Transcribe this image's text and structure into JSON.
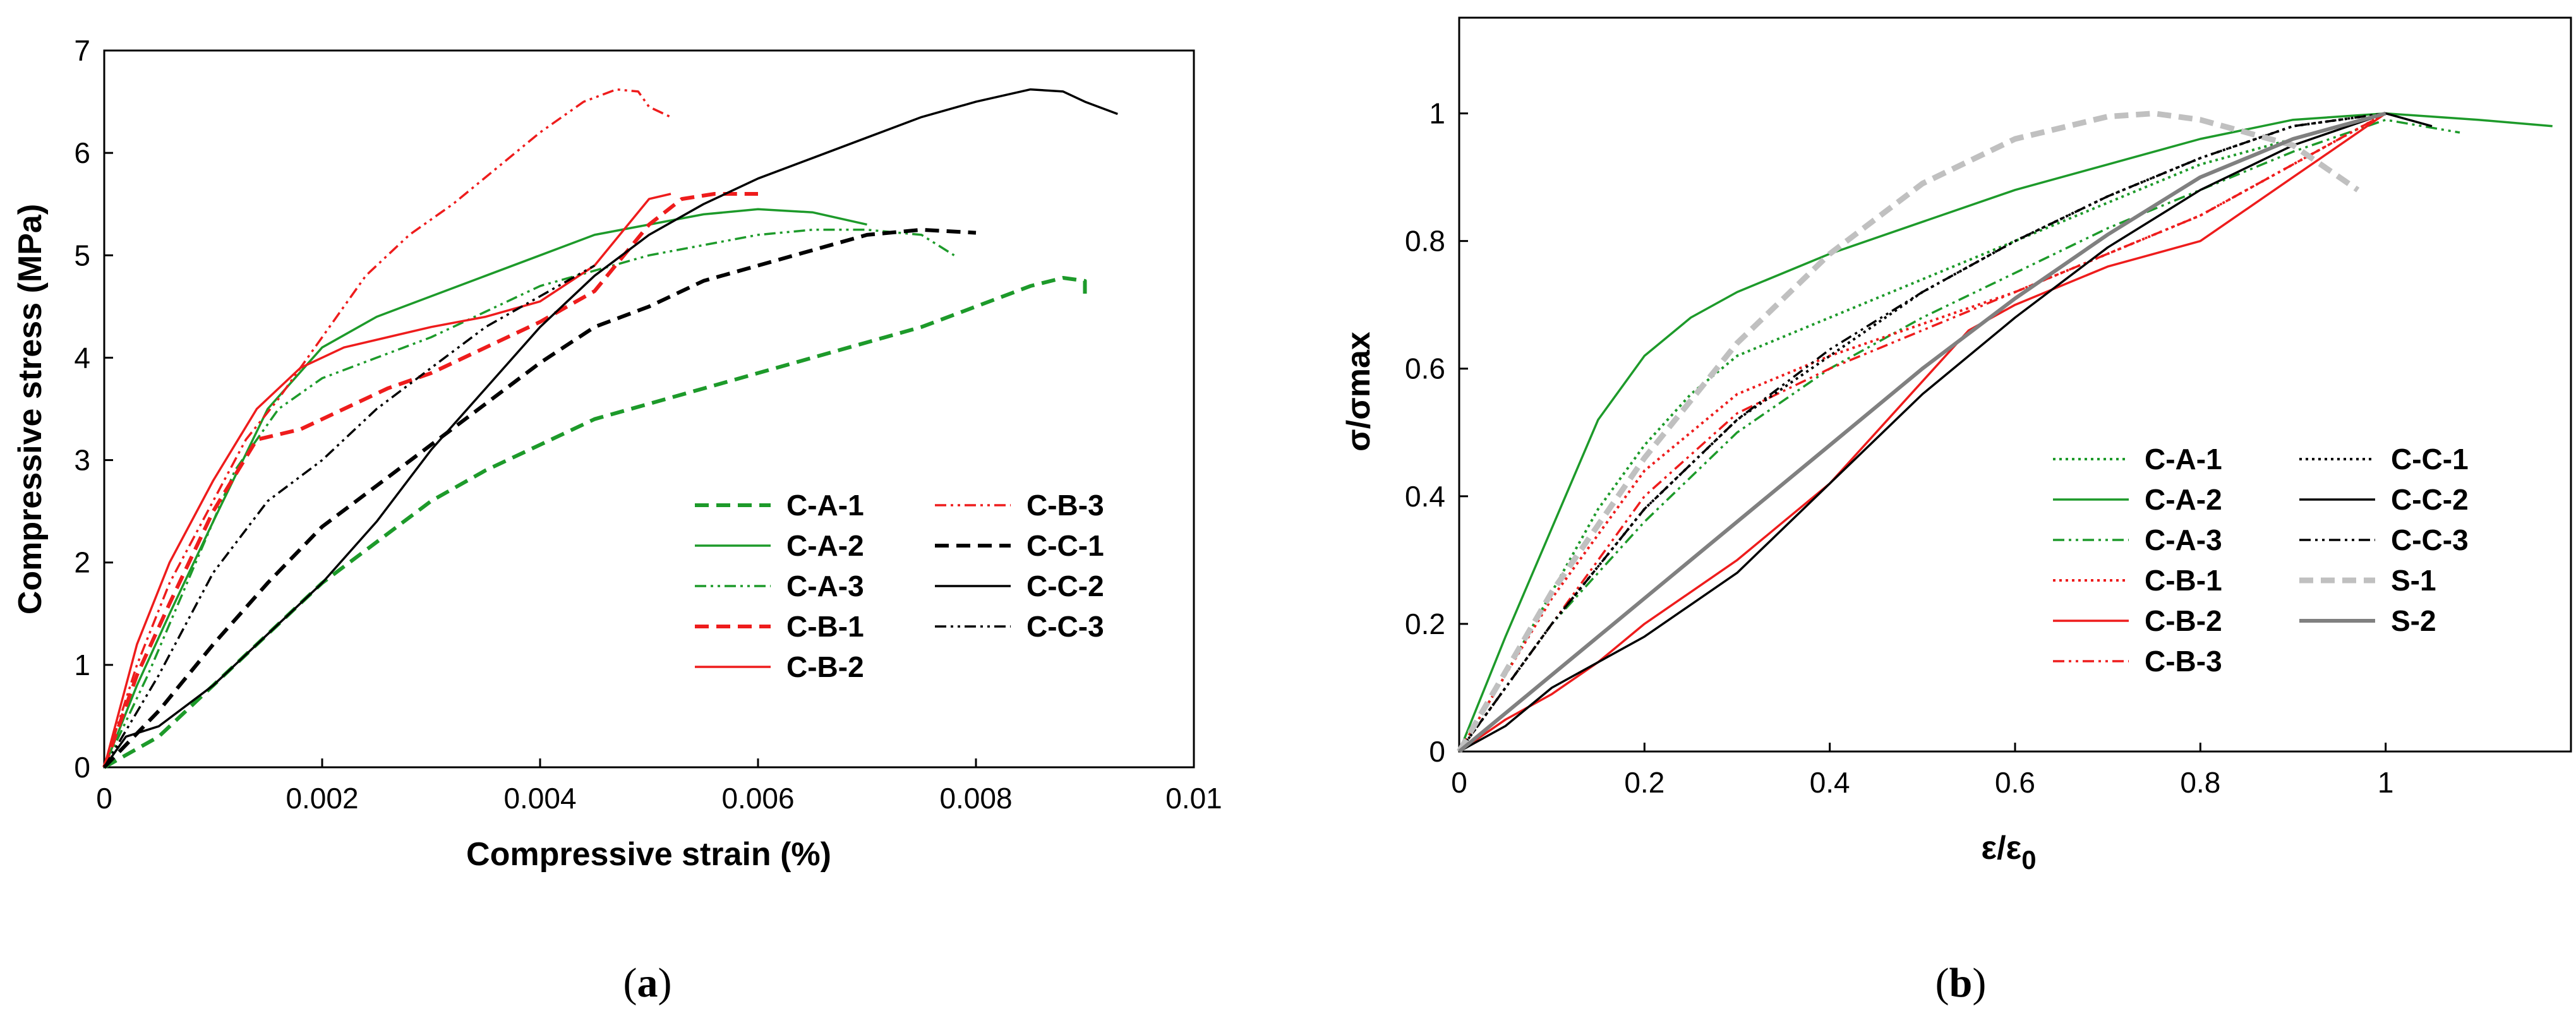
{
  "colors": {
    "green": "#1d9a2a",
    "red": "#ee1c1c",
    "black": "#000000",
    "gray": "#808080",
    "lightgray": "#c0c0c0"
  },
  "chart_data": [
    {
      "type": "line",
      "panel_label": {
        "open": "(",
        "letter": "a",
        "close": ")"
      },
      "xlabel": "Compressive strain (%)",
      "ylabel": "Compressive stress (MPa)",
      "xlim": [
        0,
        0.01
      ],
      "ylim": [
        0,
        7
      ],
      "xticks": [
        "0",
        "0.002",
        "0.004",
        "0.006",
        "0.008",
        "0.01"
      ],
      "yticks": [
        "0",
        "1",
        "2",
        "3",
        "4",
        "5",
        "6",
        "7"
      ],
      "grid": false,
      "legend_position": "bottom-right",
      "series": [
        {
          "name": "C-A-1",
          "color": "green",
          "dash": "dashed",
          "x": [
            0,
            0.0005,
            0.001,
            0.0015,
            0.002,
            0.0025,
            0.003,
            0.0035,
            0.004,
            0.0045,
            0.005,
            0.0055,
            0.006,
            0.0065,
            0.007,
            0.0075,
            0.008,
            0.0085,
            0.0088,
            0.009,
            0.009
          ],
          "y": [
            0,
            0.3,
            0.8,
            1.3,
            1.8,
            2.2,
            2.6,
            2.9,
            3.15,
            3.4,
            3.55,
            3.7,
            3.85,
            4.0,
            4.15,
            4.3,
            4.5,
            4.7,
            4.78,
            4.75,
            4.58
          ]
        },
        {
          "name": "C-A-2",
          "color": "green",
          "dash": "solid",
          "x": [
            0,
            0.0003,
            0.0006,
            0.001,
            0.0015,
            0.002,
            0.0025,
            0.003,
            0.0035,
            0.004,
            0.0045,
            0.005,
            0.0055,
            0.006,
            0.0065,
            0.007
          ],
          "y": [
            0,
            0.8,
            1.5,
            2.4,
            3.5,
            4.1,
            4.4,
            4.6,
            4.8,
            5.0,
            5.2,
            5.3,
            5.4,
            5.45,
            5.42,
            5.3
          ]
        },
        {
          "name": "C-A-3",
          "color": "green",
          "dash": "dashdotdot",
          "x": [
            0,
            0.0004,
            0.0008,
            0.0012,
            0.0016,
            0.002,
            0.0025,
            0.003,
            0.0035,
            0.004,
            0.0045,
            0.005,
            0.0055,
            0.006,
            0.0065,
            0.007,
            0.0075,
            0.0078
          ],
          "y": [
            0,
            0.9,
            1.9,
            2.9,
            3.5,
            3.8,
            4.0,
            4.2,
            4.45,
            4.7,
            4.85,
            5.0,
            5.1,
            5.2,
            5.25,
            5.25,
            5.2,
            5.0
          ]
        },
        {
          "name": "C-B-1",
          "color": "red",
          "dash": "dashed",
          "x": [
            0,
            0.0003,
            0.0006,
            0.001,
            0.0014,
            0.0018,
            0.0022,
            0.0026,
            0.003,
            0.0035,
            0.004,
            0.0045,
            0.005,
            0.0053,
            0.0056,
            0.006
          ],
          "y": [
            0,
            0.9,
            1.6,
            2.5,
            3.2,
            3.3,
            3.5,
            3.7,
            3.85,
            4.1,
            4.35,
            4.65,
            5.3,
            5.55,
            5.6,
            5.6
          ]
        },
        {
          "name": "C-B-2",
          "color": "red",
          "dash": "solid",
          "x": [
            0,
            0.0003,
            0.0006,
            0.001,
            0.0014,
            0.0018,
            0.0022,
            0.0026,
            0.003,
            0.0035,
            0.004,
            0.0045,
            0.005,
            0.0052
          ],
          "y": [
            0,
            1.2,
            2.0,
            2.8,
            3.5,
            3.9,
            4.1,
            4.2,
            4.3,
            4.4,
            4.55,
            4.9,
            5.55,
            5.6
          ]
        },
        {
          "name": "C-B-3",
          "color": "red",
          "dash": "dashdotdot",
          "x": [
            0,
            0.0003,
            0.0006,
            0.001,
            0.0013,
            0.0016,
            0.002,
            0.0024,
            0.0028,
            0.0032,
            0.0036,
            0.004,
            0.0044,
            0.0047,
            0.0049,
            0.005,
            0.0052
          ],
          "y": [
            0,
            1.0,
            1.8,
            2.6,
            3.2,
            3.6,
            4.2,
            4.8,
            5.2,
            5.5,
            5.85,
            6.2,
            6.5,
            6.62,
            6.6,
            6.45,
            6.35
          ]
        },
        {
          "name": "C-C-1",
          "color": "black",
          "dash": "dashed",
          "x": [
            0,
            0.0005,
            0.001,
            0.0015,
            0.002,
            0.0025,
            0.003,
            0.0035,
            0.004,
            0.0045,
            0.005,
            0.0055,
            0.006,
            0.0065,
            0.007,
            0.0075,
            0.008
          ],
          "y": [
            0,
            0.55,
            1.2,
            1.8,
            2.35,
            2.75,
            3.15,
            3.55,
            3.95,
            4.3,
            4.5,
            4.75,
            4.9,
            5.05,
            5.2,
            5.25,
            5.22
          ]
        },
        {
          "name": "C-C-2",
          "color": "black",
          "dash": "solid",
          "x": [
            0,
            0.0002,
            0.0005,
            0.001,
            0.0015,
            0.002,
            0.0025,
            0.003,
            0.0035,
            0.004,
            0.0045,
            0.005,
            0.0055,
            0.006,
            0.0065,
            0.007,
            0.0075,
            0.008,
            0.0085,
            0.0088,
            0.009,
            0.0093
          ],
          "y": [
            0,
            0.3,
            0.4,
            0.8,
            1.3,
            1.8,
            2.4,
            3.1,
            3.7,
            4.3,
            4.8,
            5.2,
            5.5,
            5.75,
            5.95,
            6.15,
            6.35,
            6.5,
            6.62,
            6.6,
            6.5,
            6.38
          ]
        },
        {
          "name": "C-C-3",
          "color": "black",
          "dash": "dashdotdot",
          "x": [
            0,
            0.0005,
            0.001,
            0.0015,
            0.002,
            0.0025,
            0.003,
            0.0035,
            0.004,
            0.0045
          ],
          "y": [
            0,
            0.9,
            1.9,
            2.6,
            3.0,
            3.5,
            3.9,
            4.3,
            4.6,
            4.9
          ]
        }
      ]
    },
    {
      "type": "line",
      "panel_label": {
        "open": "(",
        "letter": "b",
        "close": ")"
      },
      "xlabel": "ε/ε",
      "xlabel_sub": "0",
      "ylabel": "σ/σmax",
      "xlim": [
        0,
        1.2
      ],
      "ylim": [
        0,
        1.15
      ],
      "xticks": [
        "0",
        "0.2",
        "0.4",
        "0.6",
        "0.8",
        "1"
      ],
      "yticks": [
        "0",
        "0.2",
        "0.4",
        "0.6",
        "0.8",
        "1"
      ],
      "grid": false,
      "legend_position": "bottom-right",
      "series": [
        {
          "name": "C-A-1",
          "color": "green",
          "dash": "dotted",
          "x": [
            0,
            0.05,
            0.1,
            0.15,
            0.2,
            0.25,
            0.3,
            0.4,
            0.5,
            0.6,
            0.7,
            0.8,
            0.9,
            1.0
          ],
          "y": [
            0,
            0.12,
            0.25,
            0.38,
            0.48,
            0.56,
            0.62,
            0.68,
            0.74,
            0.8,
            0.86,
            0.92,
            0.96,
            1.0
          ]
        },
        {
          "name": "C-A-2",
          "color": "green",
          "dash": "solid",
          "x": [
            0,
            0.05,
            0.1,
            0.15,
            0.2,
            0.25,
            0.3,
            0.4,
            0.5,
            0.6,
            0.7,
            0.8,
            0.9,
            1.0,
            1.1,
            1.18
          ],
          "y": [
            0,
            0.18,
            0.35,
            0.52,
            0.62,
            0.68,
            0.72,
            0.78,
            0.83,
            0.88,
            0.92,
            0.96,
            0.99,
            1.0,
            0.99,
            0.98
          ]
        },
        {
          "name": "C-A-3",
          "color": "green",
          "dash": "dashdotdot",
          "x": [
            0,
            0.05,
            0.1,
            0.2,
            0.3,
            0.4,
            0.5,
            0.6,
            0.7,
            0.8,
            0.9,
            1.0,
            1.08
          ],
          "y": [
            0,
            0.1,
            0.2,
            0.36,
            0.5,
            0.6,
            0.68,
            0.75,
            0.82,
            0.88,
            0.94,
            0.99,
            0.97
          ]
        },
        {
          "name": "C-B-1",
          "color": "red",
          "dash": "dotted",
          "x": [
            0,
            0.05,
            0.1,
            0.2,
            0.3,
            0.4,
            0.5,
            0.6,
            0.7,
            0.8,
            0.9,
            1.0
          ],
          "y": [
            0,
            0.12,
            0.24,
            0.44,
            0.56,
            0.62,
            0.67,
            0.72,
            0.78,
            0.84,
            0.92,
            1.0
          ]
        },
        {
          "name": "C-B-2",
          "color": "red",
          "dash": "solid",
          "x": [
            0,
            0.05,
            0.1,
            0.15,
            0.2,
            0.25,
            0.3,
            0.35,
            0.4,
            0.45,
            0.5,
            0.55,
            0.6,
            0.7,
            0.8,
            0.9,
            1.0
          ],
          "y": [
            0,
            0.05,
            0.09,
            0.14,
            0.2,
            0.25,
            0.3,
            0.36,
            0.42,
            0.5,
            0.58,
            0.66,
            0.7,
            0.76,
            0.8,
            0.9,
            1.0
          ]
        },
        {
          "name": "C-B-3",
          "color": "red",
          "dash": "dashdotdot",
          "x": [
            0,
            0.05,
            0.1,
            0.2,
            0.3,
            0.4,
            0.5,
            0.6,
            0.7,
            0.8,
            0.9,
            1.0
          ],
          "y": [
            0,
            0.1,
            0.2,
            0.4,
            0.53,
            0.6,
            0.66,
            0.72,
            0.78,
            0.84,
            0.92,
            1.0
          ]
        },
        {
          "name": "C-C-1",
          "color": "black",
          "dash": "dotted",
          "x": [
            0,
            0.05,
            0.1,
            0.2,
            0.3,
            0.4,
            0.5,
            0.6,
            0.7,
            0.8,
            0.9,
            1.0
          ],
          "y": [
            0,
            0.1,
            0.2,
            0.38,
            0.52,
            0.62,
            0.72,
            0.8,
            0.87,
            0.93,
            0.98,
            1.0
          ]
        },
        {
          "name": "C-C-2",
          "color": "black",
          "dash": "solid",
          "x": [
            0,
            0.05,
            0.1,
            0.2,
            0.3,
            0.4,
            0.5,
            0.6,
            0.7,
            0.8,
            0.9,
            1.0,
            1.05
          ],
          "y": [
            0,
            0.04,
            0.1,
            0.18,
            0.28,
            0.42,
            0.56,
            0.68,
            0.79,
            0.88,
            0.95,
            1.0,
            0.98
          ]
        },
        {
          "name": "C-C-3",
          "color": "black",
          "dash": "dashdotdot",
          "x": [
            0,
            0.05,
            0.1,
            0.2,
            0.3,
            0.4,
            0.5,
            0.6,
            0.7,
            0.8,
            0.9,
            1.0
          ],
          "y": [
            0,
            0.1,
            0.2,
            0.38,
            0.52,
            0.63,
            0.72,
            0.8,
            0.87,
            0.93,
            0.98,
            1.0
          ]
        },
        {
          "name": "S-1",
          "color": "lightgray",
          "dash": "dashed",
          "x": [
            0,
            0.1,
            0.2,
            0.3,
            0.4,
            0.5,
            0.6,
            0.7,
            0.75,
            0.8,
            0.9,
            0.97
          ],
          "y": [
            0,
            0.25,
            0.46,
            0.64,
            0.78,
            0.89,
            0.96,
            0.995,
            1.0,
            0.99,
            0.95,
            0.88
          ]
        },
        {
          "name": "S-2",
          "color": "gray",
          "dash": "solid",
          "x": [
            0,
            0.1,
            0.2,
            0.3,
            0.4,
            0.5,
            0.6,
            0.7,
            0.8,
            0.9,
            1.0
          ],
          "y": [
            0,
            0.12,
            0.24,
            0.36,
            0.48,
            0.6,
            0.71,
            0.81,
            0.9,
            0.96,
            1.0
          ]
        }
      ]
    }
  ]
}
